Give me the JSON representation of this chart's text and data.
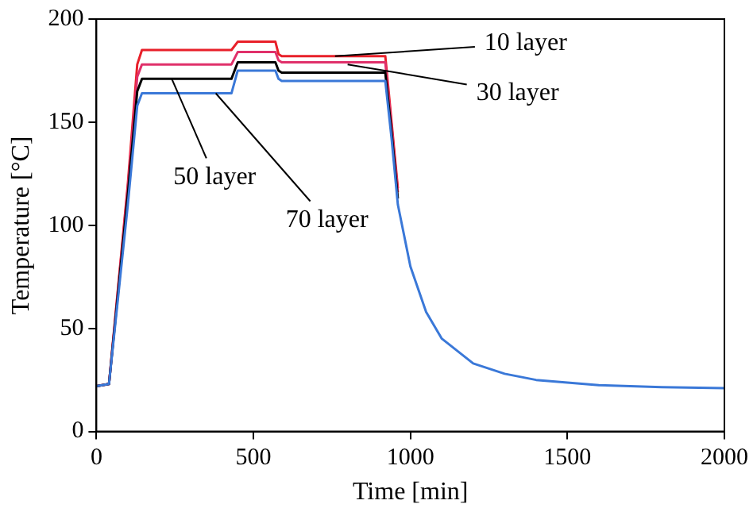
{
  "chart_data": {
    "type": "line",
    "xlabel": "Time [min]",
    "ylabel": "Temperature [°C]",
    "xlim": [
      0,
      2000
    ],
    "xticks": [
      0,
      500,
      1000,
      1500,
      2000
    ],
    "ylim": [
      0,
      200
    ],
    "yticks": [
      0,
      50,
      100,
      150,
      200
    ],
    "marker": "none",
    "line_style": "solid",
    "legend": false,
    "x": [
      0,
      40,
      100,
      130,
      145,
      430,
      450,
      460,
      570,
      580,
      590,
      920,
      940,
      960,
      1000,
      1050,
      1100,
      1200,
      1300,
      1400,
      1600,
      1800,
      2000
    ],
    "series": [
      {
        "color": "#e8202a",
        "values": [
          22,
          23,
          120,
          178,
          185,
          185,
          189,
          189,
          189,
          183,
          182,
          182,
          150,
          118,
          null,
          null,
          null,
          null,
          null,
          null,
          null,
          null,
          null
        ]
      },
      {
        "color": "#e0306a",
        "values": [
          22,
          23,
          118,
          172,
          178,
          178,
          184,
          184,
          184,
          180,
          179,
          179,
          148,
          116,
          null,
          null,
          null,
          null,
          null,
          null,
          null,
          null,
          null
        ]
      },
      {
        "color": "#000000",
        "values": [
          22,
          23,
          115,
          165,
          171,
          171,
          179,
          179,
          179,
          175,
          174,
          174,
          145,
          113,
          null,
          null,
          null,
          null,
          null,
          null,
          null,
          null,
          null
        ]
      },
      {
        "color": "#3a78d8",
        "values": [
          22,
          23,
          110,
          158,
          164,
          164,
          175,
          175,
          175,
          171,
          170,
          170,
          142,
          110,
          80,
          58,
          45,
          33,
          28,
          25,
          22.5,
          21.5,
          21
        ]
      }
    ],
    "annotations": [
      {
        "text": "10 layer",
        "x": 760,
        "y": 182
      },
      {
        "text": "30 layer",
        "x": 800,
        "y": 178
      },
      {
        "text": "50 layer",
        "x": 240,
        "y": 171
      },
      {
        "text": "70 layer",
        "x": 380,
        "y": 164
      }
    ]
  }
}
